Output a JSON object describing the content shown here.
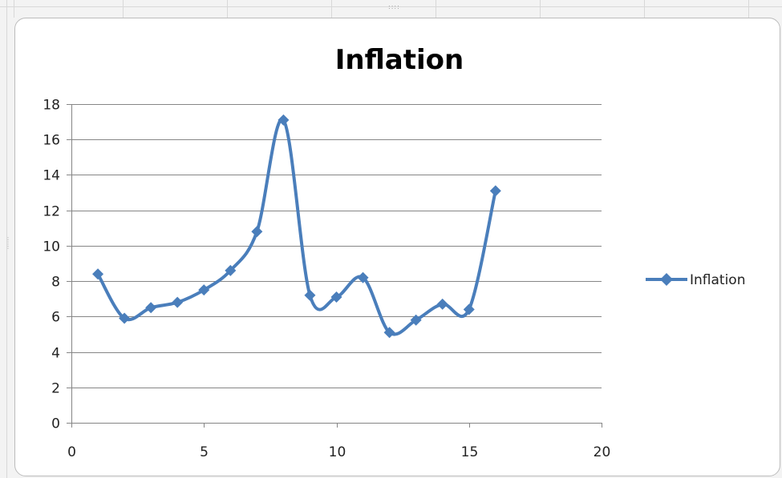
{
  "chart_data": {
    "type": "scatter",
    "title": "Inflation",
    "xlabel": "",
    "ylabel": "",
    "xlim": [
      0,
      20
    ],
    "ylim": [
      0,
      18
    ],
    "xticks": [
      0,
      5,
      10,
      15,
      20
    ],
    "yticks": [
      0,
      2,
      4,
      6,
      8,
      10,
      12,
      14,
      16,
      18
    ],
    "grid": "horizontal major gridlines",
    "smoothed_lines": true,
    "marker": "diamond",
    "legend_position": "right",
    "series": [
      {
        "name": "Inflation",
        "color": "#4a7ebb",
        "x": [
          1,
          2,
          3,
          4,
          5,
          6,
          7,
          8,
          9,
          10,
          11,
          12,
          13,
          14,
          15,
          16
        ],
        "y": [
          8.4,
          5.9,
          6.5,
          6.8,
          7.5,
          8.6,
          10.8,
          17.1,
          7.2,
          7.1,
          8.2,
          5.1,
          5.8,
          6.7,
          6.4,
          13.1
        ]
      }
    ]
  }
}
